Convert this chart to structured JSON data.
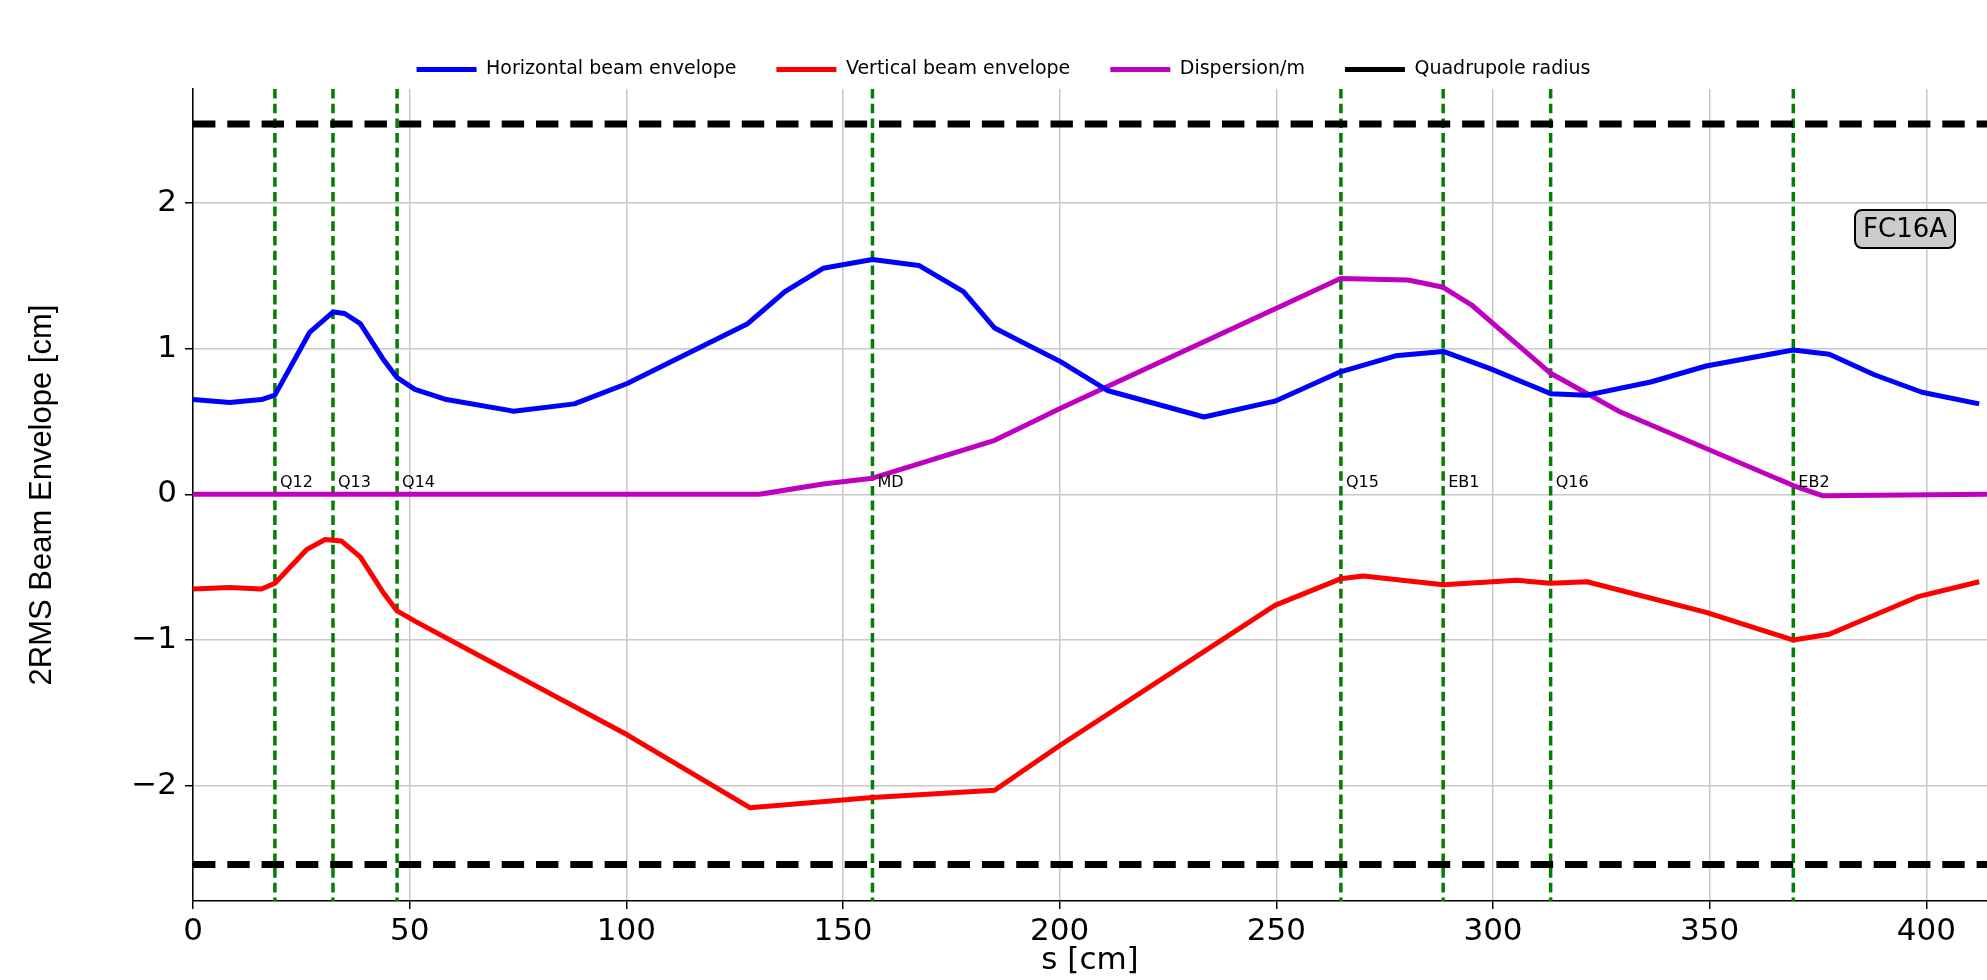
{
  "chart_data": {
    "type": "line",
    "xlabel": "s [cm]",
    "ylabel": "2RMS Beam Envelope [cm]",
    "xlim": [
      0,
      414
    ],
    "ylim": [
      -2.79,
      2.78
    ],
    "xticks": [
      0,
      50,
      100,
      150,
      200,
      250,
      300,
      350,
      400
    ],
    "yticks": [
      -2,
      -1,
      0,
      1,
      2
    ],
    "grid": true,
    "legend": "top",
    "marker": "none",
    "series": [
      {
        "name": "Horizontal beam envelope",
        "color": "#0000ff",
        "line_style": "solid",
        "x": [
          0,
          8.5,
          15.8,
          18.9,
          26.9,
          32.3,
          35,
          38.6,
          43.8,
          47.1,
          51.2,
          58.5,
          74,
          88,
          100.2,
          114.5,
          128,
          136.6,
          145.4,
          156.8,
          167.5,
          177.8,
          185,
          200.2,
          211.2,
          233.3,
          249.8,
          264.8,
          277.5,
          288.5,
          299.5,
          313.3,
          321.7,
          336.4,
          349.2,
          369.3,
          377.6,
          388,
          399,
          412.2
        ],
        "values": [
          0.65,
          0.63,
          0.65,
          0.68,
          1.11,
          1.25,
          1.24,
          1.17,
          0.93,
          0.8,
          0.72,
          0.65,
          0.57,
          0.62,
          0.76,
          0.97,
          1.17,
          1.39,
          1.55,
          1.61,
          1.57,
          1.39,
          1.14,
          0.91,
          0.71,
          0.53,
          0.64,
          0.84,
          0.95,
          0.98,
          0.86,
          0.69,
          0.68,
          0.77,
          0.88,
          0.99,
          0.96,
          0.82,
          0.7,
          0.62
        ]
      },
      {
        "name": "Vertical beam envelope",
        "color": "#ff0000",
        "line_style": "solid",
        "x": [
          0,
          8.5,
          15.8,
          18.9,
          26.2,
          30.5,
          34.2,
          38.6,
          43.8,
          47.1,
          51.2,
          100.2,
          128.5,
          156.8,
          185,
          200.2,
          249.8,
          264.8,
          270.1,
          288.5,
          305.5,
          313.3,
          321.7,
          349.2,
          369.3,
          377.6,
          398.3,
          412.2
        ],
        "values": [
          -0.65,
          -0.64,
          -0.65,
          -0.61,
          -0.38,
          -0.31,
          -0.32,
          -0.43,
          -0.67,
          -0.8,
          -0.87,
          -1.65,
          -2.15,
          -2.08,
          -2.03,
          -1.72,
          -0.76,
          -0.58,
          -0.56,
          -0.62,
          -0.59,
          -0.61,
          -0.6,
          -0.81,
          -1,
          -0.96,
          -0.7,
          -0.6
        ]
      },
      {
        "name": "Dispersion/m",
        "color": "#bf00bf",
        "line_style": "solid",
        "x": [
          0,
          130.7,
          145.4,
          156.8,
          185,
          200.2,
          264.8,
          280.4,
          288.5,
          295,
          313.3,
          329,
          369.3,
          376,
          414
        ],
        "values": [
          0,
          0,
          0.07,
          0.11,
          0.37,
          0.59,
          1.48,
          1.47,
          1.42,
          1.3,
          0.83,
          0.57,
          0.06,
          -0.01,
          0
        ]
      },
      {
        "name": "Quadrupole radius",
        "color": "#000000",
        "line_style": "dashed",
        "x": [
          0,
          414
        ],
        "values": [
          2.54,
          2.54
        ]
      },
      {
        "color": "#000000",
        "line_style": "dashed",
        "x": [
          0,
          414
        ],
        "values": [
          -2.54,
          -2.54
        ]
      }
    ],
    "ref_lines": [
      {
        "axis": "x",
        "value": 18.9,
        "label": "Q12",
        "color": "#008000",
        "line_style": "dashed"
      },
      {
        "axis": "x",
        "value": 32.3,
        "label": "Q13",
        "color": "#008000",
        "line_style": "dashed"
      },
      {
        "axis": "x",
        "value": 47.1,
        "label": "Q14",
        "color": "#008000",
        "line_style": "dashed"
      },
      {
        "axis": "x",
        "value": 156.8,
        "label": "MD",
        "color": "#008000",
        "line_style": "dashed"
      },
      {
        "axis": "x",
        "value": 264.9,
        "label": "Q15",
        "color": "#008000",
        "line_style": "dashed"
      },
      {
        "axis": "x",
        "value": 288.5,
        "label": "EB1",
        "color": "#008000",
        "line_style": "dashed"
      },
      {
        "axis": "x",
        "value": 313.3,
        "label": "Q16",
        "color": "#008000",
        "line_style": "dashed"
      },
      {
        "axis": "x",
        "value": 369.3,
        "label": "EB2",
        "color": "#008000",
        "line_style": "dashed"
      }
    ],
    "annotations": [
      "FC16A"
    ]
  }
}
